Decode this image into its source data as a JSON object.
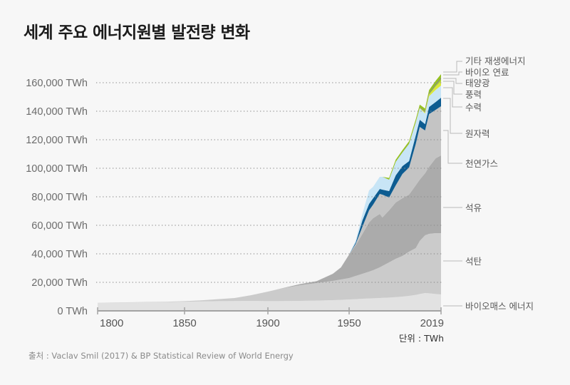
{
  "title": "세계 주요 에너지원별 발전량 변화",
  "unit_note": "단위 : TWh",
  "source": "출처 : Vaclav Smil (2017) & BP Statistical Review of World Energy",
  "chart_data": {
    "type": "area",
    "stacked": true,
    "title": "세계 주요 에너지원별 발전량 변화",
    "xlabel": "",
    "ylabel": "",
    "unit": "TWh",
    "grid": "horizontal dotted",
    "legend_position": "right (inline labels)",
    "ylim": [
      0,
      170000
    ],
    "x_ticks": [
      1800,
      1850,
      1900,
      1950,
      2019
    ],
    "x_tick_labels": [
      "1800",
      "1850",
      "1900",
      "1950",
      "2019"
    ],
    "y_ticks": [
      0,
      20000,
      40000,
      60000,
      80000,
      100000,
      120000,
      140000,
      160000
    ],
    "y_tick_labels": [
      "0 TWh",
      "20,000 TWh",
      "40,000 TWh",
      "60,000 TWh",
      "80,000 TWh",
      "100,000 TWh",
      "120,000 TWh",
      "140,000 TWh",
      "160,000 TWh"
    ],
    "x": [
      1800,
      1820,
      1840,
      1850,
      1860,
      1870,
      1880,
      1890,
      1900,
      1910,
      1920,
      1930,
      1940,
      1945,
      1950,
      1955,
      1960,
      1965,
      1968,
      1973,
      1975,
      1980,
      1985,
      1990,
      1995,
      2000,
      2003,
      2007,
      2010,
      2015,
      2019
    ],
    "series": [
      {
        "name": "바이오매스 에너지",
        "color": "#e2e2e2",
        "values": [
          5600,
          5900,
          6200,
          6400,
          6600,
          6800,
          6900,
          7000,
          6800,
          6900,
          7000,
          7200,
          7500,
          7700,
          8000,
          8200,
          8500,
          8700,
          8800,
          9000,
          9100,
          9300,
          9600,
          10000,
          10500,
          11200,
          11800,
          12500,
          12300,
          11800,
          11500
        ]
      },
      {
        "name": "석탄",
        "color": "#cbcbcb",
        "values": [
          100,
          150,
          250,
          400,
          800,
          1400,
          2100,
          4000,
          6700,
          9100,
          11000,
          12300,
          13500,
          14300,
          15000,
          16300,
          17500,
          18800,
          19700,
          21500,
          22400,
          24700,
          26900,
          28500,
          31000,
          32800,
          37200,
          40500,
          41700,
          42700,
          43000
        ]
      },
      {
        "name": "석유",
        "color": "#ababab",
        "values": [
          0,
          0,
          0,
          0,
          0,
          0,
          0,
          0,
          0,
          200,
          800,
          1300,
          5000,
          8500,
          16500,
          21500,
          28000,
          34500,
          36500,
          37500,
          34000,
          36500,
          39500,
          40500,
          40000,
          44000,
          43000,
          43500,
          47000,
          52500,
          54500
        ]
      },
      {
        "name": "천연가스",
        "color": "#c4c4c4",
        "values": [
          0,
          0,
          0,
          0,
          0,
          0,
          0,
          0,
          0,
          0,
          0,
          0,
          0,
          0,
          0,
          1000,
          5000,
          8500,
          9500,
          14000,
          16000,
          9000,
          12000,
          17000,
          19000,
          29000,
          37000,
          30000,
          37000,
          34000,
          34500
        ]
      },
      {
        "name": "원자력",
        "color": "#0d5c91",
        "values": [
          0,
          0,
          0,
          0,
          0,
          0,
          0,
          0,
          0,
          0,
          0,
          0,
          0,
          0,
          0,
          1000,
          4500,
          4500,
          4500,
          3500,
          3500,
          4500,
          7000,
          5500,
          4500,
          6000,
          5000,
          4500,
          5000,
          5500,
          6000
        ]
      },
      {
        "name": "수력",
        "color": "#c8e5f6",
        "values": [
          0,
          0,
          0,
          0,
          0,
          0,
          0,
          0,
          0,
          0,
          0,
          0,
          0,
          0,
          0,
          1500,
          4500,
          9500,
          8000,
          8500,
          9000,
          8000,
          9500,
          9500,
          12000,
          9000,
          8000,
          7500,
          7500,
          8500,
          8500
        ]
      },
      {
        "name": "풍력",
        "color": "#dbe83a",
        "values": [
          0,
          0,
          0,
          0,
          0,
          0,
          0,
          0,
          0,
          0,
          0,
          0,
          0,
          0,
          0,
          0,
          0,
          0,
          0,
          0,
          0,
          0,
          0,
          0,
          100,
          300,
          400,
          800,
          1200,
          2300,
          3000
        ]
      },
      {
        "name": "태양광",
        "color": "#a8cd30",
        "values": [
          0,
          0,
          0,
          0,
          0,
          0,
          0,
          0,
          0,
          0,
          0,
          0,
          0,
          0,
          0,
          0,
          0,
          0,
          0,
          0,
          0,
          0,
          0,
          0,
          0,
          0,
          0,
          100,
          300,
          1000,
          1600
        ]
      },
      {
        "name": "바이오 연료",
        "color": "#7d8b63",
        "values": [
          0,
          0,
          0,
          0,
          0,
          0,
          0,
          0,
          0,
          0,
          0,
          0,
          0,
          0,
          0,
          0,
          0,
          0,
          0,
          0,
          0,
          0,
          0,
          200,
          250,
          300,
          400,
          700,
          900,
          1000,
          1100
        ]
      },
      {
        "name": "기타 재생에너지",
        "color": "#95c11f",
        "values": [
          0,
          0,
          0,
          0,
          0,
          0,
          0,
          0,
          0,
          0,
          0,
          0,
          0,
          0,
          0,
          0,
          0,
          0,
          0,
          0,
          0,
          1200,
          1500,
          1500,
          1600,
          1700,
          1800,
          1800,
          1900,
          2100,
          2300
        ]
      }
    ]
  }
}
